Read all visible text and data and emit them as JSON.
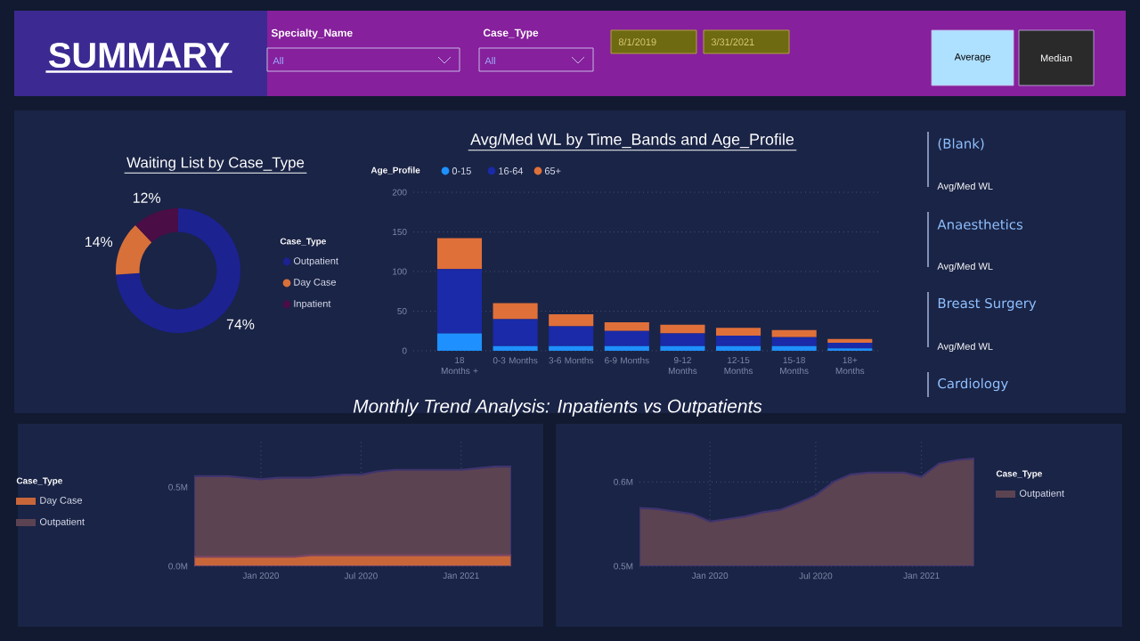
{
  "chart_data": [
    {
      "type": "other",
      "title": "SUMMARY",
      "annotations": [
        "Specialty_Name",
        "All",
        "Case_Type",
        "All",
        "8/1/2019",
        "3/31/2021",
        "Average",
        "Median"
      ]
    },
    {
      "type": "donut",
      "title": "Waiting List by Case_Type",
      "legend_title": "Case_Type",
      "legend": "right",
      "categories": [
        "Outpatient",
        "Day Case",
        "Inpatient"
      ],
      "values": [
        74,
        14,
        12
      ],
      "colors": [
        "#1c2290",
        "#d8703a",
        "#4a0d45"
      ],
      "value_labels": [
        "74%",
        "14%",
        "12%"
      ]
    },
    {
      "type": "bar",
      "stacked": true,
      "title": "Avg/Med WL by Time_Bands and Age_Profile",
      "legend_title": "Age_Profile",
      "legend": "top left",
      "grid": "y",
      "categories": [
        "18 Months +",
        "0-3 Months",
        "3-6 Months",
        "6-9 Months",
        "9-12 Months",
        "12-15 Months",
        "15-18 Months",
        "18+ Months"
      ],
      "ylim": [
        0,
        200
      ],
      "yticks": [
        0,
        50,
        100,
        150,
        200
      ],
      "series": [
        {
          "name": "0-15",
          "color": "#1e90ff",
          "values": [
            22,
            6,
            6,
            6,
            6,
            6,
            6,
            3
          ]
        },
        {
          "name": "16-64",
          "color": "#1a2aa8",
          "values": [
            81,
            34,
            25,
            19,
            16,
            13,
            11,
            7
          ]
        },
        {
          "name": "65+",
          "color": "#e0703a",
          "values": [
            39,
            20,
            15,
            11,
            11,
            10,
            9,
            5
          ]
        }
      ]
    },
    {
      "type": "area",
      "title": "Monthly Trend Analysis: Inpatients vs Outpatients",
      "legend_title": "Case_Type",
      "legend": "left",
      "grid": true,
      "x": [
        "2019-09",
        "2019-10",
        "2019-11",
        "2019-12",
        "2020-01",
        "2020-02",
        "2020-03",
        "2020-04",
        "2020-05",
        "2020-06",
        "2020-07",
        "2020-08",
        "2020-09",
        "2020-10",
        "2020-11",
        "2020-12",
        "2021-01",
        "2021-02",
        "2021-03",
        "2021-04"
      ],
      "xlim": [
        "2019-09",
        "2021-04"
      ],
      "xticks": [
        {
          "value": "2020-01",
          "label": "Jan 2020"
        },
        {
          "value": "2020-07",
          "label": "Jul 2020"
        },
        {
          "value": "2021-01",
          "label": "Jan 2021"
        }
      ],
      "ylim": [
        0,
        0.8
      ],
      "yticks": [
        {
          "value": 0,
          "label": "0.0M"
        },
        {
          "value": 0.5,
          "label": "0.5M"
        }
      ],
      "series": [
        {
          "name": "Day Case",
          "color": "#c8663a",
          "values": [
            0.06,
            0.06,
            0.06,
            0.06,
            0.06,
            0.06,
            0.06,
            0.07,
            0.07,
            0.07,
            0.07,
            0.07,
            0.07,
            0.07,
            0.07,
            0.07,
            0.07,
            0.07,
            0.07,
            0.07
          ]
        },
        {
          "name": "Outpatient",
          "color": "#5c4352",
          "values": [
            0.57,
            0.57,
            0.57,
            0.56,
            0.55,
            0.56,
            0.56,
            0.56,
            0.57,
            0.58,
            0.58,
            0.6,
            0.61,
            0.61,
            0.61,
            0.61,
            0.61,
            0.62,
            0.63,
            0.63
          ]
        }
      ]
    },
    {
      "type": "area",
      "legend_title": "Case_Type",
      "legend": "right",
      "grid": true,
      "x": [
        "2019-09",
        "2019-10",
        "2019-11",
        "2019-12",
        "2020-01",
        "2020-02",
        "2020-03",
        "2020-04",
        "2020-05",
        "2020-06",
        "2020-07",
        "2020-08",
        "2020-09",
        "2020-10",
        "2020-11",
        "2020-12",
        "2021-01",
        "2021-02",
        "2021-03",
        "2021-04"
      ],
      "xlim": [
        "2019-09",
        "2021-04"
      ],
      "xticks": [
        {
          "value": "2020-01",
          "label": "Jan 2020"
        },
        {
          "value": "2020-07",
          "label": "Jul 2020"
        },
        {
          "value": "2021-01",
          "label": "Jan 2021"
        }
      ],
      "ylim": [
        0.5,
        0.65
      ],
      "yticks": [
        {
          "value": 0.5,
          "label": "0.5M"
        },
        {
          "value": 0.6,
          "label": "0.6M"
        }
      ],
      "series": [
        {
          "name": "Outpatient",
          "color": "#5c4352",
          "values": [
            0.569,
            0.568,
            0.565,
            0.562,
            0.553,
            0.556,
            0.559,
            0.564,
            0.567,
            0.575,
            0.584,
            0.6,
            0.609,
            0.611,
            0.611,
            0.611,
            0.606,
            0.622,
            0.626,
            0.628
          ]
        }
      ]
    },
    {
      "type": "other",
      "annotations": [
        "(Blank)",
        "Avg/Med WL",
        "Anaesthetics",
        "Avg/Med WL",
        "Breast Surgery",
        "Avg/Med WL",
        "Cardiology"
      ]
    }
  ]
}
